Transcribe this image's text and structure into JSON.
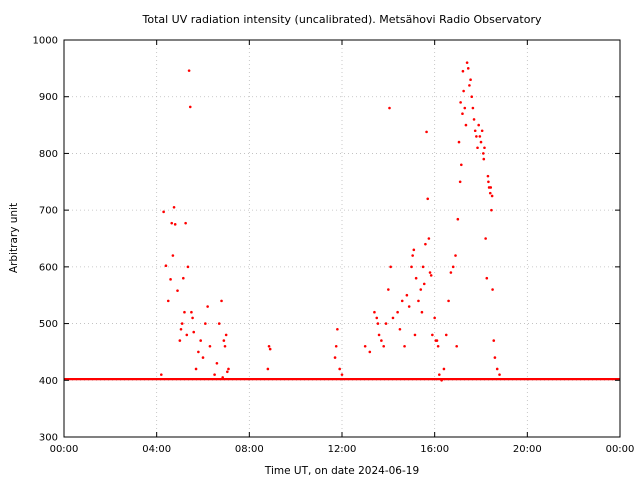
{
  "chart_data": {
    "type": "scatter",
    "title": "Total UV radiation intensity (uncalibrated). Metsähovi Radio Observatory",
    "xlabel": "Time UT, on date 2024-06-19",
    "ylabel": "Arbitrary unit",
    "xlim": [
      0,
      24
    ],
    "ylim": [
      300,
      1000
    ],
    "x_ticks": [
      0,
      4,
      8,
      12,
      16,
      20,
      24
    ],
    "x_tick_labels": [
      "00:00",
      "04:00",
      "08:00",
      "12:00",
      "16:00",
      "20:00",
      "00:00"
    ],
    "y_ticks": [
      300,
      400,
      500,
      600,
      700,
      800,
      900,
      1000
    ],
    "y_tick_labels": [
      "300",
      "400",
      "500",
      "600",
      "700",
      "800",
      "900",
      "1000"
    ],
    "grid": true,
    "baseline_value": 402,
    "series": [
      {
        "color": "#ff0000",
        "x": [
          4.3,
          4.4,
          4.5,
          4.6,
          4.7,
          4.75,
          4.8,
          4.9,
          5.0,
          5.1,
          5.2,
          5.3,
          5.35,
          5.4,
          5.45,
          5.5,
          5.6,
          5.7,
          5.8,
          5.9,
          6.0,
          6.1,
          6.2,
          6.3,
          6.5,
          6.6,
          6.7,
          6.8,
          6.9,
          7.0,
          7.1,
          4.2,
          4.65,
          5.05,
          5.25,
          5.55,
          5.15,
          6.85,
          6.95,
          7.05,
          8.8,
          8.85,
          8.9,
          11.7,
          11.75,
          11.8,
          11.9,
          12.0,
          13.0,
          13.2,
          13.4,
          13.5,
          13.6,
          13.7,
          13.8,
          13.9,
          14.0,
          14.1,
          14.2,
          14.4,
          14.6,
          14.8,
          14.9,
          15.0,
          15.05,
          15.1,
          15.2,
          15.3,
          15.4,
          15.5,
          15.6,
          15.65,
          15.7,
          15.75,
          15.8,
          15.85,
          15.9,
          16.0,
          16.1,
          16.2,
          16.5,
          16.6,
          16.7,
          16.8,
          16.9,
          17.0,
          17.05,
          17.1,
          17.15,
          17.2,
          17.25,
          17.3,
          17.35,
          17.4,
          17.45,
          17.5,
          17.55,
          17.6,
          17.65,
          17.7,
          17.75,
          17.8,
          17.85,
          17.9,
          17.95,
          18.0,
          18.05,
          18.1,
          18.15,
          18.2,
          18.25,
          18.3,
          18.35,
          18.4,
          18.45,
          18.5,
          18.55,
          18.6,
          18.7,
          18.8,
          14.05,
          15.55,
          16.3,
          16.4,
          17.12,
          17.22,
          18.12,
          18.32,
          18.42,
          18.48,
          13.55,
          14.5,
          14.7,
          15.15,
          15.45,
          16.05,
          16.15,
          16.95
        ],
        "y": [
          697,
          602,
          540,
          578,
          620,
          705,
          675,
          558,
          470,
          500,
          520,
          480,
          600,
          946,
          882,
          520,
          485,
          420,
          450,
          470,
          440,
          500,
          530,
          460,
          410,
          430,
          500,
          540,
          470,
          480,
          420,
          410,
          677,
          490,
          677,
          510,
          580,
          405,
          460,
          415,
          420,
          460,
          455,
          440,
          460,
          490,
          420,
          410,
          460,
          450,
          520,
          510,
          480,
          470,
          460,
          500,
          560,
          600,
          510,
          520,
          540,
          550,
          530,
          600,
          620,
          630,
          580,
          540,
          560,
          600,
          640,
          838,
          720,
          650,
          590,
          585,
          480,
          510,
          470,
          410,
          480,
          540,
          590,
          600,
          620,
          684,
          820,
          750,
          780,
          870,
          910,
          880,
          850,
          960,
          950,
          920,
          930,
          900,
          880,
          860,
          840,
          830,
          810,
          850,
          830,
          820,
          840,
          800,
          810,
          650,
          580,
          760,
          740,
          730,
          700,
          560,
          470,
          440,
          420,
          410,
          880,
          570,
          400,
          420,
          890,
          945,
          790,
          750,
          740,
          725,
          500,
          490,
          460,
          480,
          520,
          470,
          460,
          460
        ]
      }
    ]
  }
}
